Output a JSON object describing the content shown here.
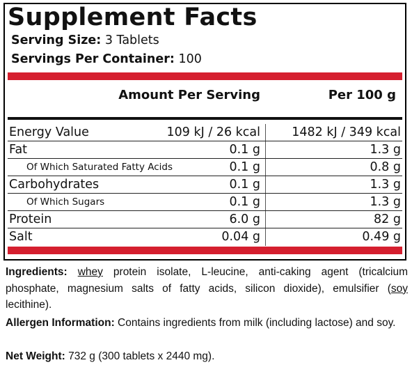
{
  "label": {
    "title": "Supplement Facts",
    "serving_size_label": "Serving Size:",
    "serving_size_value": "3 Tablets",
    "servings_per_container_label": "Servings Per Container:",
    "servings_per_container_value": "100",
    "header_amount": "Amount Per Serving",
    "header_per": "Per 100 g",
    "accent_color": "#d51f2f",
    "rows": [
      {
        "name": "Energy Value",
        "per_serving": "109 kJ / 26 kcal",
        "per_100g": "1482 kJ / 349 kcal"
      },
      {
        "name": "Fat",
        "per_serving": "0.1 g",
        "per_100g": "1.3 g"
      },
      {
        "name": "Of Which Saturated Fatty Acids",
        "per_serving": "0.1 g",
        "per_100g": "0.8 g"
      },
      {
        "name": "Carbohydrates",
        "per_serving": "0.1 g",
        "per_100g": "1.3 g"
      },
      {
        "name": "Of Which Sugars",
        "per_serving": "0.1 g",
        "per_100g": "1.3 g"
      },
      {
        "name": "Protein",
        "per_serving": "6.0 g",
        "per_100g": "82 g"
      },
      {
        "name": "Salt",
        "per_serving": "0.04 g",
        "per_100g": "0.49 g"
      }
    ]
  },
  "ingredients": {
    "label": "Ingredients:",
    "underlined_1": "whey",
    "text_1": " protein isolate, L-leucine, anti-caking agent (tricalcium phosphate, magnesium salts of fatty acids, silicon dioxide), emulsifier (",
    "underlined_2": "soy",
    "text_2": " lecithine)."
  },
  "allergen": {
    "label": "Allergen Information:",
    "text": " Contains ingredients from milk (including lactose) and soy."
  },
  "net_weight": {
    "label": "Net Weight:",
    "text": " 732 g (300 tablets x 2440 mg)."
  }
}
